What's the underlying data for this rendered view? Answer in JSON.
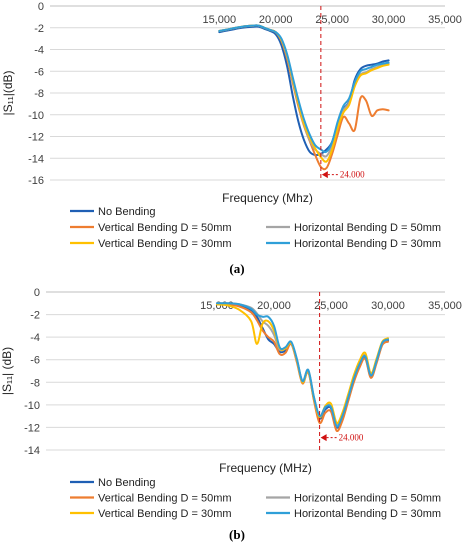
{
  "chart_data": [
    {
      "type": "line",
      "caption": "(a)",
      "xlabel": "Frequency (Mhz)",
      "ylabel": "|S₁₁|(dB)",
      "xlim": [
        0,
        35000
      ],
      "ylim": [
        -16,
        0
      ],
      "x_ticks": [
        "15,000",
        "20,000",
        "25,000",
        "30,000",
        "35,000"
      ],
      "x_tick_values": [
        15000,
        20000,
        25000,
        30000,
        35000
      ],
      "y_ticks": [
        "0",
        "-2",
        "-4",
        "-6",
        "-8",
        "-10",
        "-12",
        "-14",
        "-16"
      ],
      "y_tick_values": [
        0,
        -2,
        -4,
        -6,
        -8,
        -10,
        -12,
        -14,
        -16
      ],
      "grid": "horizontal",
      "marker": {
        "x": 24000,
        "label": "24.000",
        "y": -15.5
      },
      "series": [
        {
          "name": "No Bending",
          "color": "#1f5fb4",
          "x": [
            15000,
            16000,
            17000,
            18000,
            18500,
            19000,
            19500,
            20000,
            20500,
            21000,
            21500,
            22000,
            22500,
            23000,
            23500,
            24000,
            24500,
            25000,
            25500,
            26000,
            26500,
            27000,
            27500,
            28000,
            28500,
            29000,
            29500,
            30000
          ],
          "y": [
            -2.4,
            -2.2,
            -2.0,
            -1.9,
            -1.9,
            -2.1,
            -2.3,
            -2.6,
            -3.6,
            -5.5,
            -8.2,
            -10.6,
            -12.3,
            -13.4,
            -13.7,
            -13.6,
            -13.2,
            -12.5,
            -10.8,
            -9.5,
            -8.8,
            -6.8,
            -5.8,
            -5.5,
            -5.4,
            -5.3,
            -5.1,
            -5.0
          ]
        },
        {
          "name": "Vertical Bending D = 50mm",
          "color": "#ee7d30",
          "x": [
            15000,
            16000,
            17000,
            18000,
            18500,
            19000,
            19500,
            20000,
            20500,
            21000,
            21500,
            22000,
            22500,
            23000,
            23500,
            24000,
            24500,
            25000,
            25500,
            26000,
            26500,
            27000,
            27500,
            28000,
            28500,
            29000,
            29500,
            30000
          ],
          "y": [
            -2.3,
            -2.1,
            -1.9,
            -1.8,
            -1.8,
            -2.0,
            -2.2,
            -2.4,
            -3.2,
            -4.8,
            -7.0,
            -9.2,
            -11.0,
            -12.4,
            -13.7,
            -14.8,
            -14.9,
            -13.6,
            -11.8,
            -10.2,
            -10.8,
            -11.4,
            -8.5,
            -8.7,
            -10.1,
            -9.6,
            -9.5,
            -9.6
          ]
        },
        {
          "name": "Horizontal Bending D = 50mm",
          "color": "#a5a5a5",
          "x": [
            15000,
            16000,
            17000,
            18000,
            18500,
            19000,
            19500,
            20000,
            20500,
            21000,
            21500,
            22000,
            22500,
            23000,
            23500,
            24000,
            24500,
            25000,
            25500,
            26000,
            26500,
            27000,
            27500,
            28000,
            28500,
            29000,
            29500,
            30000
          ],
          "y": [
            -2.3,
            -2.1,
            -1.9,
            -1.8,
            -1.8,
            -2.0,
            -2.2,
            -2.4,
            -3.1,
            -4.6,
            -6.8,
            -9.0,
            -10.9,
            -12.3,
            -13.2,
            -13.6,
            -13.8,
            -12.8,
            -11.0,
            -9.6,
            -8.9,
            -7.3,
            -6.3,
            -6.1,
            -5.8,
            -5.6,
            -5.4,
            -5.3
          ]
        },
        {
          "name": "Vertical Bending D = 30mm",
          "color": "#ffc000",
          "x": [
            15000,
            16000,
            17000,
            18000,
            18500,
            19000,
            19500,
            20000,
            20500,
            21000,
            21500,
            22000,
            22500,
            23000,
            23500,
            24000,
            24500,
            25000,
            25500,
            26000,
            26500,
            27000,
            27500,
            28000,
            28500,
            29000,
            29500,
            30000
          ],
          "y": [
            -2.3,
            -2.1,
            -1.9,
            -1.8,
            -1.8,
            -2.0,
            -2.2,
            -2.4,
            -3.1,
            -4.5,
            -6.7,
            -8.9,
            -10.8,
            -12.1,
            -13.1,
            -13.9,
            -14.3,
            -13.2,
            -11.2,
            -9.8,
            -9.1,
            -7.4,
            -6.4,
            -6.2,
            -5.9,
            -5.7,
            -5.5,
            -5.4
          ]
        },
        {
          "name": "Horizontal Bending D = 30mm",
          "color": "#2f9fd8",
          "x": [
            15000,
            16000,
            17000,
            18000,
            18500,
            19000,
            19500,
            20000,
            20500,
            21000,
            21500,
            22000,
            22500,
            23000,
            23500,
            24000,
            24500,
            25000,
            25500,
            26000,
            26500,
            27000,
            27500,
            28000,
            28500,
            29000,
            29500,
            30000
          ],
          "y": [
            -2.3,
            -2.1,
            -1.9,
            -1.8,
            -1.8,
            -2.0,
            -2.2,
            -2.4,
            -3.0,
            -4.4,
            -6.5,
            -8.6,
            -10.4,
            -11.8,
            -12.8,
            -13.2,
            -13.4,
            -12.5,
            -10.6,
            -9.2,
            -8.5,
            -7.0,
            -6.0,
            -5.8,
            -5.6,
            -5.4,
            -5.3,
            -5.2
          ]
        }
      ]
    },
    {
      "type": "line",
      "caption": "(b)",
      "xlabel": "Frequency (MHz)",
      "ylabel": "|S₁₁| (dB)",
      "xlim": [
        0,
        35000
      ],
      "ylim": [
        -14,
        0
      ],
      "x_ticks": [
        "15,000",
        "20,000",
        "25,000",
        "30,000",
        "35,000"
      ],
      "x_tick_values": [
        15000,
        20000,
        25000,
        30000,
        35000
      ],
      "y_ticks": [
        "0",
        "-2",
        "-4",
        "-6",
        "-8",
        "-10",
        "-12",
        "-14"
      ],
      "y_tick_values": [
        0,
        -2,
        -4,
        -6,
        -8,
        -10,
        -12,
        -14
      ],
      "grid": "horizontal",
      "marker": {
        "x": 24000,
        "label": "24.000",
        "y": -12.9
      },
      "series": [
        {
          "name": "No Bending",
          "color": "#1f5fb4",
          "x": [
            15000,
            16000,
            17000,
            18000,
            18500,
            19000,
            19500,
            20000,
            20500,
            21000,
            21500,
            22000,
            22500,
            23000,
            23500,
            24000,
            24500,
            25000,
            25500,
            26000,
            26500,
            27000,
            27500,
            28000,
            28500,
            29000,
            29500,
            30000
          ],
          "y": [
            -1.1,
            -1.1,
            -1.2,
            -1.6,
            -2.2,
            -3.2,
            -4.2,
            -4.6,
            -5.3,
            -5.2,
            -4.6,
            -6.0,
            -8.0,
            -7.0,
            -9.5,
            -11.2,
            -10.4,
            -10.3,
            -12.0,
            -11.2,
            -9.5,
            -7.8,
            -6.5,
            -5.8,
            -7.5,
            -6.2,
            -4.6,
            -4.3
          ]
        },
        {
          "name": "Vertical Bending D = 50mm",
          "color": "#ee7d30",
          "x": [
            15000,
            16000,
            17000,
            18000,
            18500,
            19000,
            19500,
            20000,
            20500,
            21000,
            21500,
            22000,
            22500,
            23000,
            23500,
            24000,
            24500,
            25000,
            25500,
            26000,
            26500,
            27000,
            27500,
            28000,
            28500,
            29000,
            29500,
            30000
          ],
          "y": [
            -1.1,
            -1.1,
            -1.3,
            -1.8,
            -2.5,
            -3.4,
            -4.0,
            -4.4,
            -5.5,
            -5.4,
            -4.6,
            -6.2,
            -8.1,
            -7.1,
            -9.6,
            -11.6,
            -10.7,
            -10.6,
            -12.3,
            -11.4,
            -9.7,
            -8.0,
            -6.7,
            -5.9,
            -7.6,
            -6.3,
            -4.7,
            -4.4
          ]
        },
        {
          "name": "Horizontal Bending D = 50mm",
          "color": "#a5a5a5",
          "x": [
            15000,
            16000,
            17000,
            18000,
            18500,
            19000,
            19500,
            20000,
            20500,
            21000,
            21500,
            22000,
            22500,
            23000,
            23500,
            24000,
            24500,
            25000,
            25500,
            26000,
            26500,
            27000,
            27500,
            28000,
            28500,
            29000,
            29500,
            30000
          ],
          "y": [
            -1.0,
            -1.0,
            -1.1,
            -1.4,
            -1.9,
            -2.6,
            -3.0,
            -3.8,
            -5.1,
            -5.0,
            -4.5,
            -6.0,
            -7.9,
            -6.9,
            -9.3,
            -11.0,
            -10.2,
            -10.1,
            -11.7,
            -10.9,
            -9.3,
            -7.6,
            -6.3,
            -5.6,
            -7.3,
            -6.0,
            -4.5,
            -4.2
          ]
        },
        {
          "name": "Vertical Bending D = 30mm",
          "color": "#ffc000",
          "x": [
            15000,
            16000,
            17000,
            18000,
            18500,
            19000,
            19500,
            20000,
            20500,
            21000,
            21500,
            22000,
            22500,
            23000,
            23500,
            24000,
            24500,
            25000,
            25500,
            26000,
            26500,
            27000,
            27500,
            28000,
            28500,
            29000,
            29500,
            30000
          ],
          "y": [
            -1.1,
            -1.2,
            -1.6,
            -2.6,
            -4.6,
            -2.8,
            -2.6,
            -3.4,
            -5.0,
            -5.0,
            -4.5,
            -6.0,
            -8.0,
            -7.0,
            -9.4,
            -11.1,
            -10.1,
            -9.9,
            -11.6,
            -10.7,
            -9.1,
            -7.4,
            -6.1,
            -5.4,
            -7.2,
            -5.9,
            -4.4,
            -4.1
          ]
        },
        {
          "name": "Horizontal Bending D = 30mm",
          "color": "#2f9fd8",
          "x": [
            15000,
            16000,
            17000,
            18000,
            18500,
            19000,
            19500,
            20000,
            20500,
            21000,
            21500,
            22000,
            22500,
            23000,
            23500,
            24000,
            24500,
            25000,
            25500,
            26000,
            26500,
            27000,
            27500,
            28000,
            28500,
            29000,
            29500,
            30000
          ],
          "y": [
            -1.0,
            -1.0,
            -1.1,
            -1.5,
            -2.0,
            -2.2,
            -2.2,
            -3.0,
            -4.9,
            -4.9,
            -4.4,
            -5.9,
            -7.9,
            -6.9,
            -9.3,
            -11.0,
            -10.2,
            -10.2,
            -11.9,
            -11.0,
            -9.4,
            -7.7,
            -6.4,
            -5.7,
            -7.4,
            -6.1,
            -4.5,
            -4.2
          ]
        }
      ]
    }
  ]
}
